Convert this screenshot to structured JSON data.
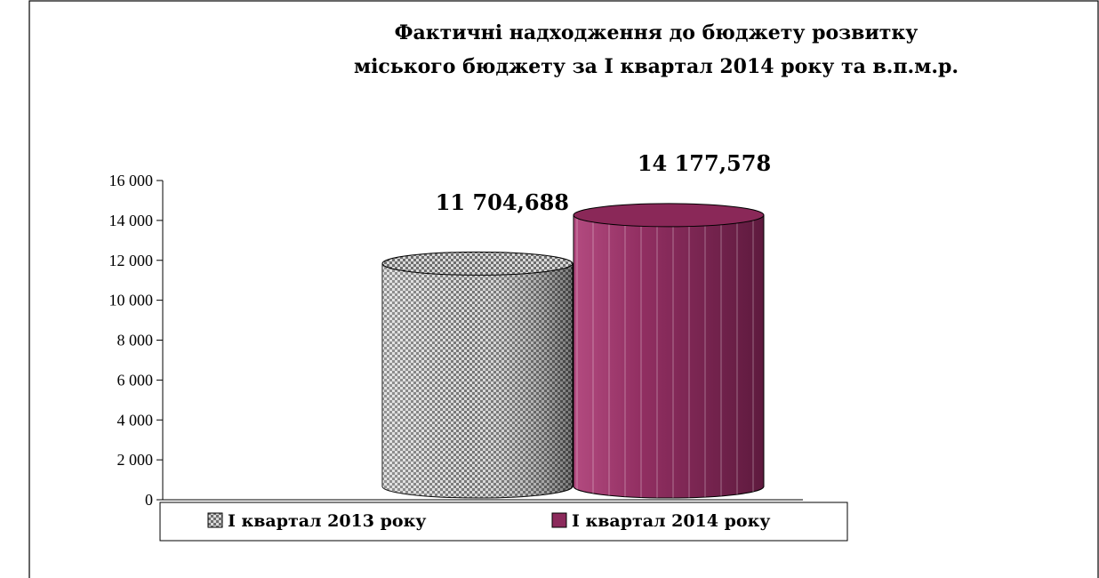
{
  "chart_data": {
    "type": "bar",
    "title_lines": [
      "Фактичні надходження до бюджету розвитку",
      "міського бюджету за І квартал 2014 року та в.п.м.р."
    ],
    "xlabel": "",
    "ylabel": "",
    "ylim": [
      0,
      16000
    ],
    "yticks": [
      {
        "value": 0,
        "label": "0"
      },
      {
        "value": 2000,
        "label": "2 000"
      },
      {
        "value": 4000,
        "label": "4 000"
      },
      {
        "value": 6000,
        "label": "6 000"
      },
      {
        "value": 8000,
        "label": "8 000"
      },
      {
        "value": 10000,
        "label": "10 000"
      },
      {
        "value": 12000,
        "label": "12 000"
      },
      {
        "value": 14000,
        "label": "14 000"
      },
      {
        "value": 16000,
        "label": "16 000"
      }
    ],
    "shape": "cylinder",
    "legend_position": "bottom",
    "grid": false,
    "series": [
      {
        "name": "І квартал 2013 року",
        "value": 11704.688,
        "label": "11 704,688",
        "color": "#9a9a9a",
        "pattern": "checker"
      },
      {
        "name": "І квартал 2014 року",
        "value": 14177.578,
        "label": "14 177,578",
        "color": "#8c2a5c",
        "pattern": "vertical-stripes"
      }
    ]
  }
}
